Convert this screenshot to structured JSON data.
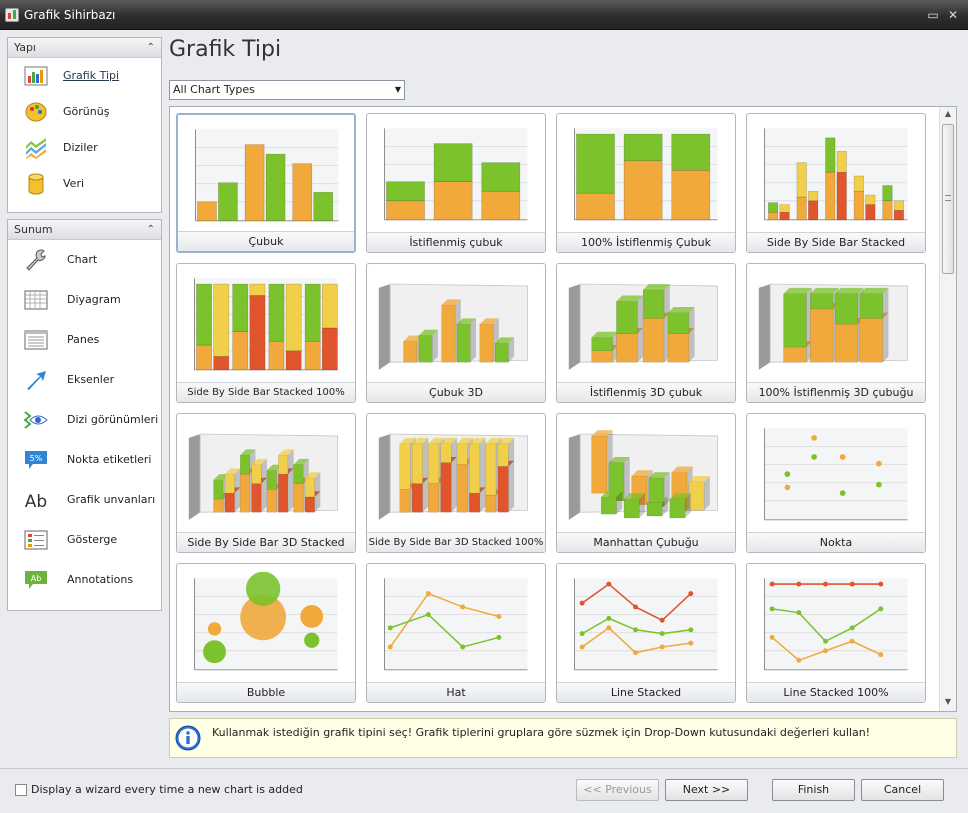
{
  "window": {
    "title": "Grafik Sihirbazı"
  },
  "nav": {
    "groups": [
      {
        "title": "Yapı",
        "items": [
          {
            "label": "Grafik Tipi",
            "icon": "bar-chart-icon",
            "selected": true
          },
          {
            "label": "Görünüş",
            "icon": "palette-icon"
          },
          {
            "label": "Diziler",
            "icon": "series-stack-icon"
          },
          {
            "label": "Veri",
            "icon": "database-icon"
          }
        ]
      },
      {
        "title": "Sunum",
        "items": [
          {
            "label": "Chart",
            "icon": "wrench-icon"
          },
          {
            "label": "Diyagram",
            "icon": "grid-icon"
          },
          {
            "label": "Panes",
            "icon": "panes-icon"
          },
          {
            "label": "Eksenler",
            "icon": "arrow-icon"
          },
          {
            "label": "Dizi görünümleri",
            "icon": "eye-icon"
          },
          {
            "label": "Nokta etiketleri",
            "icon": "percent-label-icon",
            "icon_text": "5%"
          },
          {
            "label": "Grafik unvanları",
            "icon": "title-text-icon",
            "icon_text": "Ab"
          },
          {
            "label": "Gösterge",
            "icon": "legend-icon"
          },
          {
            "label": "Annotations",
            "icon": "annotation-icon",
            "icon_text": "Ab"
          }
        ]
      }
    ]
  },
  "page": {
    "title": "Grafik Tipi",
    "filter": {
      "value": "All Chart Types"
    }
  },
  "gallery": {
    "tiles": [
      {
        "label": "Çubuk",
        "kind": "bar",
        "selected": true
      },
      {
        "label": "İstiflenmiş çubuk",
        "kind": "stacked"
      },
      {
        "label": "100% İstiflenmiş Çubuk",
        "kind": "full"
      },
      {
        "label": "Side By Side Bar Stacked",
        "kind": "sbs"
      },
      {
        "label": "Side By Side Bar Stacked 100%",
        "kind": "sbs100"
      },
      {
        "label": "Çubuk 3D",
        "kind": "bar3d"
      },
      {
        "label": "İstiflenmiş 3D çubuk",
        "kind": "stacked3d"
      },
      {
        "label": "100% İstiflenmiş 3D çubuğu",
        "kind": "full3d"
      },
      {
        "label": "Side By Side Bar 3D Stacked",
        "kind": "sbs3d"
      },
      {
        "label": "Side By Side Bar 3D Stacked 100%",
        "kind": "sbs3d100"
      },
      {
        "label": "Manhattan Çubuğu",
        "kind": "manhattan"
      },
      {
        "label": "Nokta",
        "kind": "point"
      },
      {
        "label": "Bubble",
        "kind": "bubble"
      },
      {
        "label": "Hat",
        "kind": "line"
      },
      {
        "label": "Line Stacked",
        "kind": "linestacked"
      },
      {
        "label": "Line Stacked 100%",
        "kind": "linestacked100"
      }
    ]
  },
  "hint": {
    "text": "Kullanmak istediğin grafik tipini seç! Grafik tiplerini gruplara göre süzmek için Drop-Down kutusundaki değerleri kullan!"
  },
  "footer": {
    "checkbox_label": "Display a wizard every time a new chart is added",
    "checked": false,
    "buttons": {
      "previous": "<< Previous",
      "next": "Next >>",
      "finish": "Finish",
      "cancel": "Cancel"
    }
  },
  "colors": {
    "green": "#7cc22c",
    "orange": "#f0a93a",
    "red": "#e0552c",
    "yellow": "#f2cf4a"
  }
}
